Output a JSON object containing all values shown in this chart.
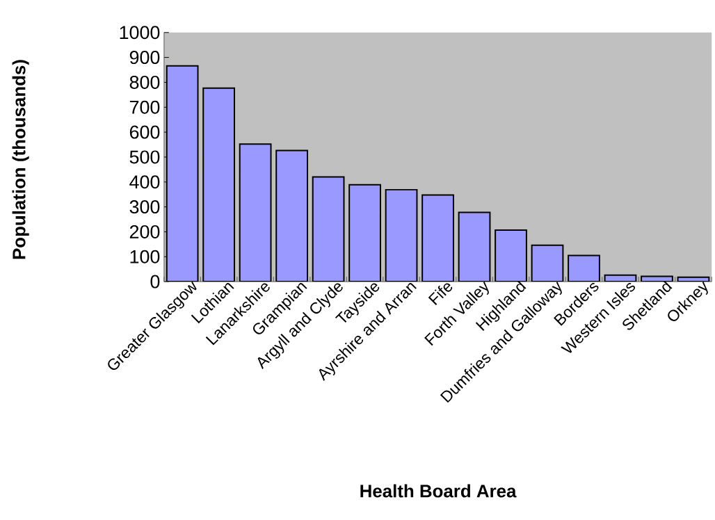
{
  "chart_data": {
    "type": "bar",
    "xlabel": "Health Board Area",
    "ylabel": "Population (thousands)",
    "categories": [
      "Greater Glasgow",
      "Lothian",
      "Lanarkshire",
      "Grampian",
      "Argyll and Clyde",
      "Tayside",
      "Ayrshire and Arran",
      "Fife",
      "Forth Valley",
      "Highland",
      "Dumfries and Galloway",
      "Borders",
      "Western Isles",
      "Shetland",
      "Orkney"
    ],
    "values": [
      866,
      777,
      552,
      526,
      420,
      389,
      369,
      348,
      278,
      207,
      146,
      105,
      26,
      21,
      18
    ],
    "color": "#9999ff",
    "ylim": [
      0,
      1000
    ],
    "yticks": [
      0,
      100,
      200,
      300,
      400,
      500,
      600,
      700,
      800,
      900,
      1000
    ]
  }
}
